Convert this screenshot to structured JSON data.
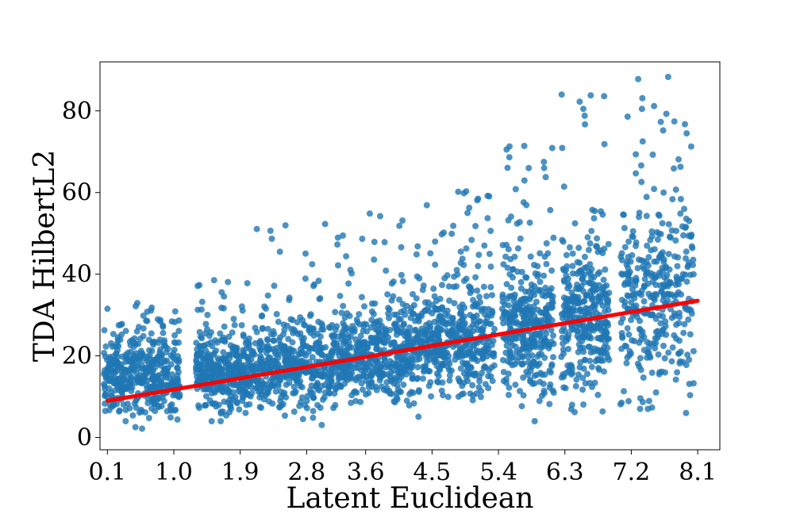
{
  "chart_data": {
    "type": "scatter",
    "xlabel": "Latent Euclidean",
    "ylabel": "TDA HilbertL2",
    "xlim": [
      0.0,
      8.4
    ],
    "ylim": [
      -3,
      92
    ],
    "x_ticks": [
      0.1,
      1.0,
      1.9,
      2.8,
      3.6,
      4.5,
      5.4,
      6.3,
      7.2,
      8.1
    ],
    "x_tick_labels": [
      "0.1",
      "1.0",
      "1.9",
      "2.8",
      "3.6",
      "4.5",
      "5.4",
      "6.3",
      "7.2",
      "8.1"
    ],
    "y_ticks": [
      0,
      20,
      40,
      60,
      80
    ],
    "y_tick_labels": [
      "0",
      "20",
      "40",
      "60",
      "80"
    ],
    "grid": false,
    "colors": {
      "points": "#1f77b4",
      "trend": "#ff0000"
    },
    "trend_line": {
      "x": [
        0.1,
        8.1
      ],
      "y": [
        9.0,
        33.5
      ]
    },
    "clusters": [
      {
        "x_range": [
          0.05,
          1.08
        ],
        "y_center": 12,
        "y_spread": 6.5,
        "y_min": 1,
        "y_max": 33,
        "count": 450
      },
      {
        "x_range": [
          1.3,
          2.05
        ],
        "y_center": 13,
        "y_spread": 5.5,
        "y_min": 4,
        "y_max": 39,
        "count": 380
      },
      {
        "x_range": [
          2.05,
          3.2
        ],
        "y_center": 15,
        "y_spread": 6.5,
        "y_min": 3,
        "y_max": 52,
        "count": 460
      },
      {
        "x_range": [
          3.2,
          4.3
        ],
        "y_center": 17,
        "y_spread": 7.5,
        "y_min": 4,
        "y_max": 55,
        "count": 480
      },
      {
        "x_range": [
          4.3,
          5.35
        ],
        "y_center": 20,
        "y_spread": 9,
        "y_min": 5,
        "y_max": 62,
        "count": 470
      },
      {
        "x_range": [
          5.45,
          6.15
        ],
        "y_center": 22,
        "y_spread": 11,
        "y_min": 4,
        "y_max": 71,
        "count": 360
      },
      {
        "x_range": [
          6.25,
          6.9
        ],
        "y_center": 24,
        "y_spread": 12.5,
        "y_min": 5,
        "y_max": 84,
        "count": 340
      },
      {
        "x_range": [
          7.05,
          8.05
        ],
        "y_center": 28,
        "y_spread": 15,
        "y_min": 6,
        "y_max": 88,
        "count": 360
      }
    ],
    "notable_points": [
      {
        "x": 7.7,
        "y": 88.3
      },
      {
        "x": 6.65,
        "y": 83.8
      },
      {
        "x": 7.35,
        "y": 83.1
      },
      {
        "x": 6.55,
        "y": 80.5
      },
      {
        "x": 7.15,
        "y": 78.6
      },
      {
        "x": 7.6,
        "y": 77.3
      },
      {
        "x": 7.95,
        "y": 74.5
      },
      {
        "x": 5.75,
        "y": 71.4
      },
      {
        "x": 5.55,
        "y": 71.3
      },
      {
        "x": 3.05,
        "y": 52.3
      }
    ]
  }
}
